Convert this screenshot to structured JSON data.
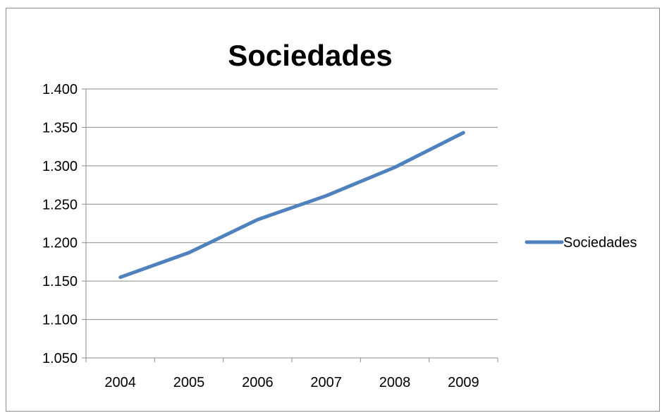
{
  "chart_data": {
    "type": "line",
    "title": "Sociedades",
    "xlabel": "",
    "ylabel": "",
    "categories": [
      "2004",
      "2005",
      "2006",
      "2007",
      "2008",
      "2009"
    ],
    "series": [
      {
        "name": "Sociedades",
        "values": [
          1.155,
          1.187,
          1.23,
          1.261,
          1.298,
          1.343
        ],
        "color": "#4f81bd"
      }
    ],
    "ylim": [
      1.05,
      1.4
    ],
    "y_ticks": [
      1.05,
      1.1,
      1.15,
      1.2,
      1.25,
      1.3,
      1.35,
      1.4
    ],
    "y_tick_labels": [
      "1.050",
      "1.100",
      "1.150",
      "1.200",
      "1.250",
      "1.300",
      "1.350",
      "1.400"
    ],
    "grid": true,
    "legend_position": "right",
    "colors": {
      "gridline": "#8c8c8c",
      "axis": "#8c8c8c",
      "line": "#4f81bd"
    }
  }
}
